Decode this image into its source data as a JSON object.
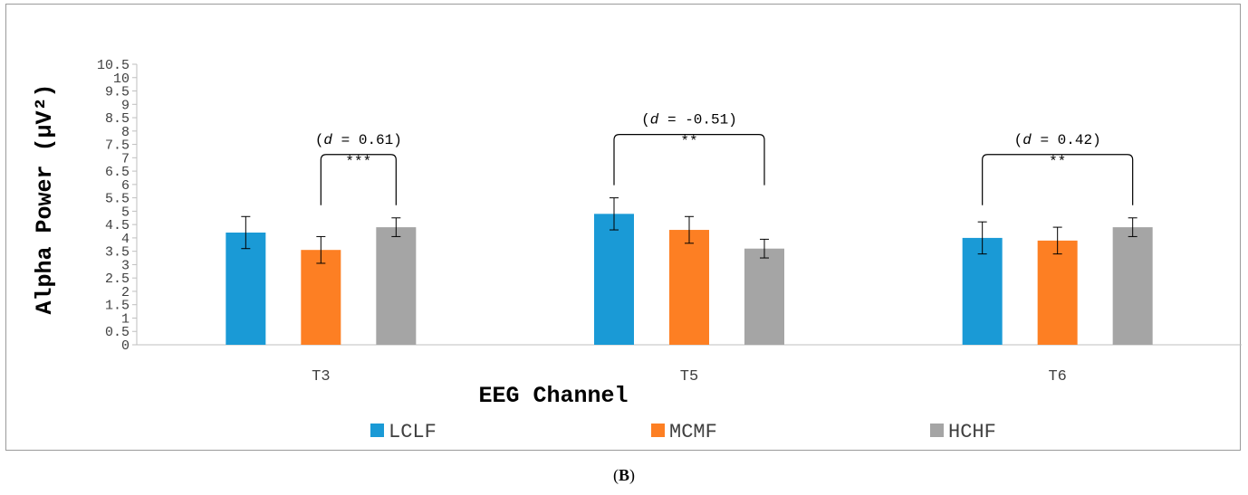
{
  "panel_label": {
    "open": "(",
    "letter": "B",
    "close": ")"
  },
  "chart_data": {
    "type": "bar",
    "xlabel": "EEG Channel",
    "ylabel": "Alpha Power (μV²)",
    "ylim": [
      0,
      10.5
    ],
    "yticks": [
      "0",
      "0.5",
      "1",
      "1.5",
      "2",
      "2.5",
      "3",
      "3.5",
      "4",
      "4.5",
      "5",
      "5.5",
      "6",
      "6.5",
      "7",
      "7.5",
      "8",
      "8.5",
      "9",
      "9.5",
      "10",
      "10.5"
    ],
    "categories": [
      "T3",
      "T5",
      "T6"
    ],
    "series": [
      {
        "name": "LCLF",
        "color": "#1a9ad6",
        "values": [
          4.2,
          4.9,
          4.0
        ],
        "errors": [
          0.6,
          0.6,
          0.6
        ]
      },
      {
        "name": "MCMF",
        "color": "#fd7f23",
        "values": [
          3.55,
          4.3,
          3.9
        ],
        "errors": [
          0.5,
          0.5,
          0.5
        ]
      },
      {
        "name": "HCHF",
        "color": "#a5a5a5",
        "values": [
          4.4,
          3.6,
          4.4
        ],
        "errors": [
          0.35,
          0.35,
          0.35
        ]
      }
    ],
    "legend_position": "bottom",
    "grid": false,
    "annotations": [
      {
        "category": "T3",
        "from_series": "MCMF",
        "to_series": "HCHF",
        "d_prefix": "(",
        "d_symbol": "d",
        "d_rest": " = 0.61)",
        "stars": "***"
      },
      {
        "category": "T5",
        "from_series": "LCLF",
        "to_series": "HCHF",
        "d_prefix": "(",
        "d_symbol": "d",
        "d_rest": " = -0.51)",
        "stars": "**"
      },
      {
        "category": "T6",
        "from_series": "LCLF",
        "to_series": "HCHF",
        "d_prefix": "(",
        "d_symbol": "d",
        "d_rest": " = 0.42)",
        "stars": "**"
      }
    ]
  }
}
